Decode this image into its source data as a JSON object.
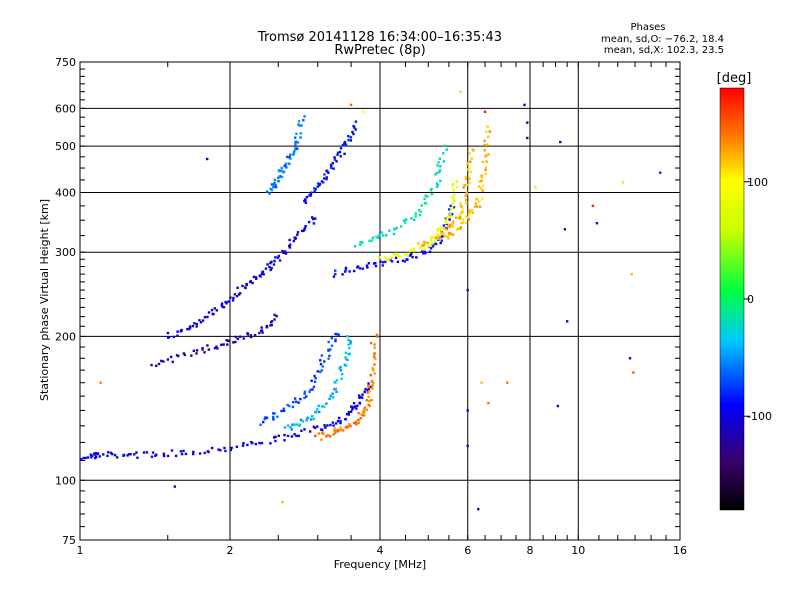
{
  "chart_data": {
    "type": "scatter",
    "title": "Tromsø 20141128 16:34:00–16:35:43",
    "subtitle": "RwPretec (8p)",
    "stats": {
      "heading": "Phases",
      "line1": "mean, sd,O: −76.2, 18.4",
      "line2": "mean, sd,X: 102.3, 23.5"
    },
    "xlabel": "Frequency [MHz]",
    "ylabel": "Stationary phase Virtual Height [km]",
    "x_scale": "log",
    "y_scale": "log",
    "xlim": [
      1,
      16
    ],
    "ylim": [
      75,
      750
    ],
    "x_ticks": [
      1,
      2,
      4,
      6,
      8,
      10,
      16
    ],
    "y_ticks": [
      75,
      100,
      200,
      300,
      400,
      500,
      600,
      750
    ],
    "grid": true,
    "colorbar": {
      "label": "[deg]",
      "min": -180,
      "max": 180,
      "ticks": [
        100,
        0,
        -100
      ]
    },
    "traces": [
      {
        "name": "",
        "x": [
          1.02,
          1.1,
          1.3,
          1.6,
          2.0,
          2.5,
          3.0,
          3.4,
          3.6,
          3.8
        ],
        "y": [
          112,
          113,
          113,
          114,
          117,
          122,
          128,
          135,
          145,
          160
        ],
        "phase": -100
      },
      {
        "name": "",
        "x": [
          3.0,
          3.3,
          3.6,
          3.8,
          3.85,
          3.9
        ],
        "y": [
          123,
          127,
          133,
          145,
          165,
          205
        ],
        "phase": 140
      },
      {
        "name": "",
        "x": [
          2.6,
          2.9,
          3.2,
          3.4,
          3.5
        ],
        "y": [
          128,
          135,
          150,
          175,
          205
        ],
        "phase": -40
      },
      {
        "name": "",
        "x": [
          2.3,
          2.6,
          2.9,
          3.1,
          3.3
        ],
        "y": [
          132,
          140,
          155,
          180,
          205
        ],
        "phase": -70
      },
      {
        "name": "",
        "x": [
          1.4,
          1.7,
          2.0,
          2.3,
          2.5
        ],
        "y": [
          175,
          185,
          195,
          205,
          220
        ],
        "phase": -115
      },
      {
        "name": "",
        "x": [
          1.5,
          1.7,
          1.9,
          2.1,
          2.3,
          2.5,
          2.7,
          3.0
        ],
        "y": [
          200,
          210,
          230,
          250,
          270,
          290,
          320,
          360
        ],
        "phase": -100
      },
      {
        "name": "",
        "x": [
          3.2,
          3.8,
          4.4,
          5.0,
          5.4,
          5.6
        ],
        "y": [
          270,
          280,
          290,
          300,
          330,
          380
        ],
        "phase": -90
      },
      {
        "name": "",
        "x": [
          4.0,
          4.6,
          5.2,
          5.5,
          5.7
        ],
        "y": [
          290,
          300,
          320,
          360,
          430
        ],
        "phase": 80
      },
      {
        "name": "",
        "x": [
          4.8,
          5.4,
          5.8,
          6.0,
          6.1
        ],
        "y": [
          310,
          330,
          360,
          420,
          500
        ],
        "phase": 120
      },
      {
        "name": "",
        "x": [
          5.4,
          5.9,
          6.3,
          6.5,
          6.6
        ],
        "y": [
          320,
          345,
          380,
          450,
          560
        ],
        "phase": 120
      },
      {
        "name": "",
        "x": [
          3.6,
          4.2,
          4.8,
          5.2,
          5.4
        ],
        "y": [
          310,
          330,
          360,
          420,
          500
        ],
        "phase": -20
      },
      {
        "name": "",
        "x": [
          2.4,
          2.5,
          2.6,
          2.7,
          2.8
        ],
        "y": [
          400,
          430,
          460,
          500,
          580
        ],
        "phase": -60
      },
      {
        "name": "",
        "x": [
          2.8,
          3.0,
          3.2,
          3.4,
          3.6
        ],
        "y": [
          380,
          410,
          450,
          500,
          560
        ],
        "phase": -85
      }
    ],
    "points": [
      {
        "x": 1.8,
        "y": 470,
        "phase": -110
      },
      {
        "x": 1.55,
        "y": 97,
        "phase": -110
      },
      {
        "x": 1.1,
        "y": 160,
        "phase": 140
      },
      {
        "x": 2.55,
        "y": 90,
        "phase": 120
      },
      {
        "x": 7.8,
        "y": 610,
        "phase": -120
      },
      {
        "x": 7.9,
        "y": 560,
        "phase": -120
      },
      {
        "x": 7.9,
        "y": 520,
        "phase": -120
      },
      {
        "x": 8.2,
        "y": 410,
        "phase": 60
      },
      {
        "x": 9.2,
        "y": 510,
        "phase": -120
      },
      {
        "x": 9.4,
        "y": 335,
        "phase": -120
      },
      {
        "x": 9.5,
        "y": 215,
        "phase": -120
      },
      {
        "x": 9.1,
        "y": 143,
        "phase": -100
      },
      {
        "x": 10.7,
        "y": 375,
        "phase": 170
      },
      {
        "x": 10.9,
        "y": 345,
        "phase": -100
      },
      {
        "x": 12.3,
        "y": 420,
        "phase": 110
      },
      {
        "x": 12.8,
        "y": 270,
        "phase": 120
      },
      {
        "x": 12.7,
        "y": 180,
        "phase": -100
      },
      {
        "x": 12.9,
        "y": 168,
        "phase": 150
      },
      {
        "x": 14.6,
        "y": 440,
        "phase": -80
      },
      {
        "x": 6.0,
        "y": 250,
        "phase": -120
      },
      {
        "x": 6.0,
        "y": 140,
        "phase": -100
      },
      {
        "x": 6.0,
        "y": 118,
        "phase": -110
      },
      {
        "x": 6.3,
        "y": 87,
        "phase": -120
      },
      {
        "x": 6.4,
        "y": 160,
        "phase": 120
      },
      {
        "x": 6.6,
        "y": 145,
        "phase": 140
      },
      {
        "x": 7.2,
        "y": 160,
        "phase": 140
      },
      {
        "x": 5.8,
        "y": 650,
        "phase": 110
      },
      {
        "x": 6.5,
        "y": 590,
        "phase": 170
      },
      {
        "x": 3.5,
        "y": 610,
        "phase": 150
      },
      {
        "x": 3.7,
        "y": 590,
        "phase": 100
      }
    ]
  }
}
